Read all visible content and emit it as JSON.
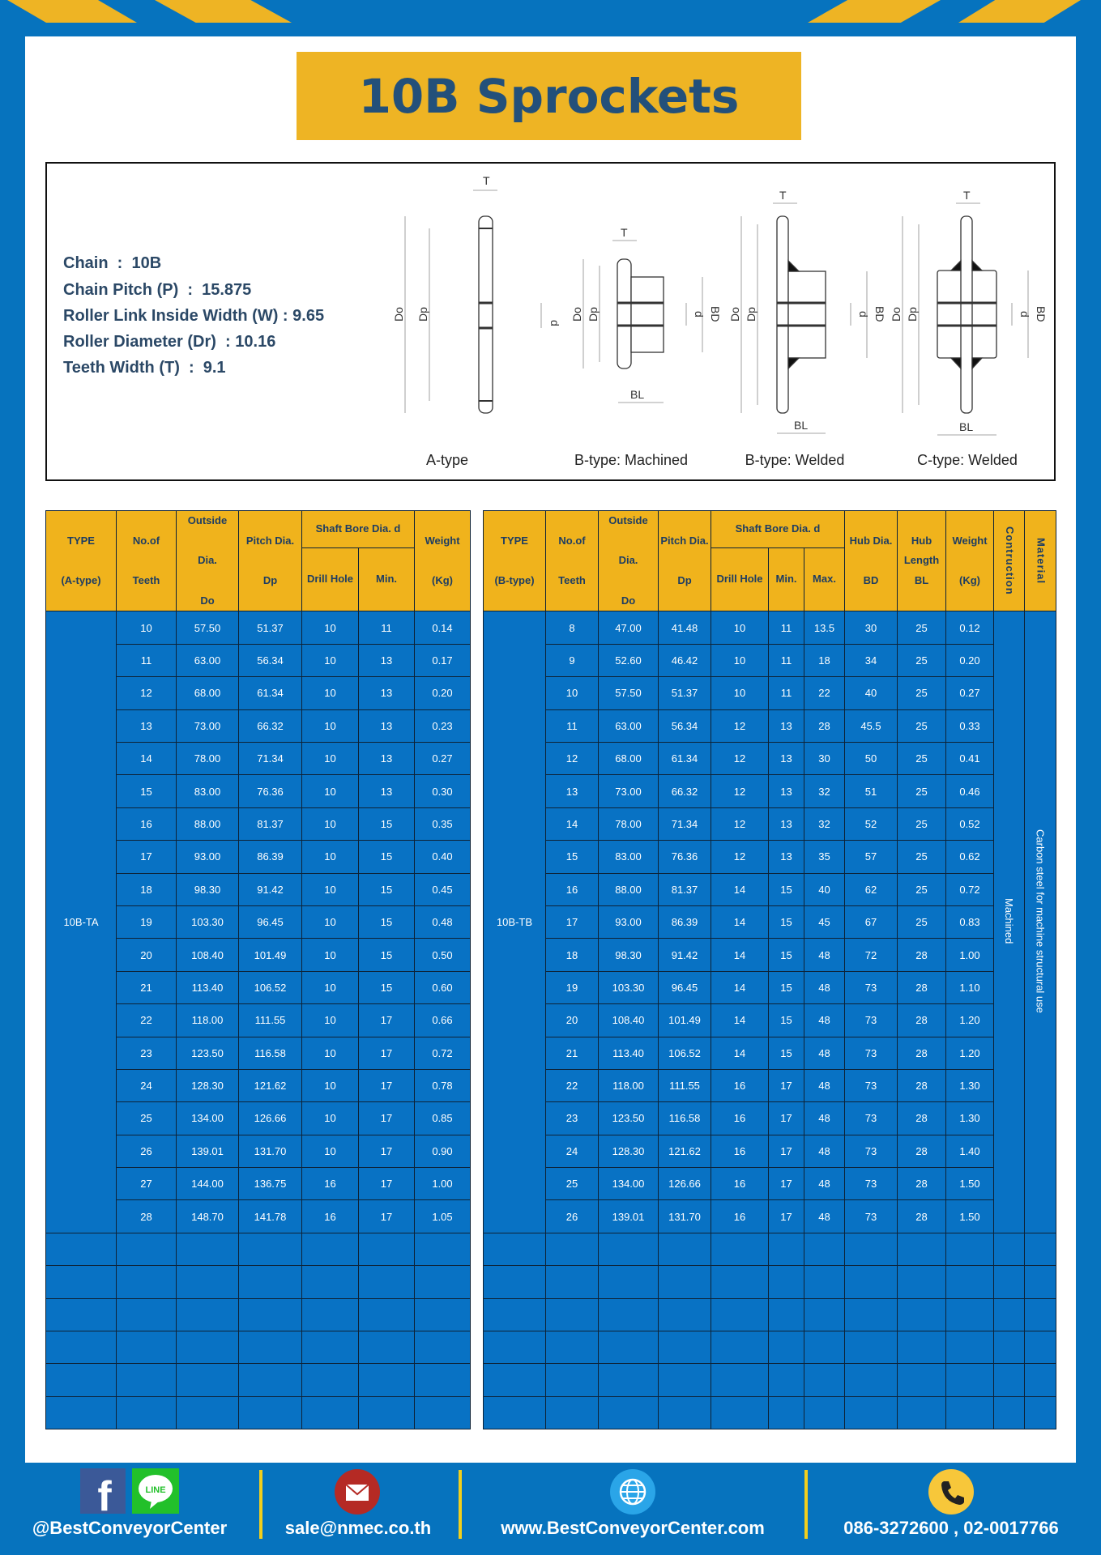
{
  "title": "10B Sprockets",
  "specs": [
    "Chain  :  10B",
    "Chain Pitch (P)  :  15.875",
    "Roller Link Inside Width (W) : 9.65",
    "Roller Diameter (Dr)  : 10.16",
    "Teeth Width (T)  :  9.1"
  ],
  "diagram": {
    "captions": [
      "A-type",
      "B-type: Machined",
      "B-type: Welded",
      "C-type: Welded"
    ],
    "dims": {
      "T": "T",
      "Do": "Do",
      "Dp": "Dp",
      "d": "d",
      "BD": "BD",
      "BL": "BL"
    }
  },
  "table_a": {
    "headers": {
      "type": [
        "TYPE",
        "(A-type)"
      ],
      "teeth": [
        "No.of",
        "Teeth"
      ],
      "outside": [
        "Outside",
        "Dia.",
        "Do"
      ],
      "pitch": [
        "Pitch Dia.",
        "Dp"
      ],
      "shaft": "Shaft Bore Dia. d",
      "drill": "Drill Hole",
      "min": "Min.",
      "weight": [
        "Weight",
        "(Kg)"
      ]
    },
    "type_value": "10B-TA",
    "rows": [
      [
        "10",
        "57.50",
        "51.37",
        "10",
        "11",
        "0.14"
      ],
      [
        "11",
        "63.00",
        "56.34",
        "10",
        "13",
        "0.17"
      ],
      [
        "12",
        "68.00",
        "61.34",
        "10",
        "13",
        "0.20"
      ],
      [
        "13",
        "73.00",
        "66.32",
        "10",
        "13",
        "0.23"
      ],
      [
        "14",
        "78.00",
        "71.34",
        "10",
        "13",
        "0.27"
      ],
      [
        "15",
        "83.00",
        "76.36",
        "10",
        "13",
        "0.30"
      ],
      [
        "16",
        "88.00",
        "81.37",
        "10",
        "15",
        "0.35"
      ],
      [
        "17",
        "93.00",
        "86.39",
        "10",
        "15",
        "0.40"
      ],
      [
        "18",
        "98.30",
        "91.42",
        "10",
        "15",
        "0.45"
      ],
      [
        "19",
        "103.30",
        "96.45",
        "10",
        "15",
        "0.48"
      ],
      [
        "20",
        "108.40",
        "101.49",
        "10",
        "15",
        "0.50"
      ],
      [
        "21",
        "113.40",
        "106.52",
        "10",
        "15",
        "0.60"
      ],
      [
        "22",
        "118.00",
        "111.55",
        "10",
        "17",
        "0.66"
      ],
      [
        "23",
        "123.50",
        "116.58",
        "10",
        "17",
        "0.72"
      ],
      [
        "24",
        "128.30",
        "121.62",
        "10",
        "17",
        "0.78"
      ],
      [
        "25",
        "134.00",
        "126.66",
        "10",
        "17",
        "0.85"
      ],
      [
        "26",
        "139.01",
        "131.70",
        "10",
        "17",
        "0.90"
      ],
      [
        "27",
        "144.00",
        "136.75",
        "16",
        "17",
        "1.00"
      ],
      [
        "28",
        "148.70",
        "141.78",
        "16",
        "17",
        "1.05"
      ]
    ]
  },
  "table_b": {
    "headers": {
      "type": [
        "TYPE",
        "(B-type)"
      ],
      "teeth": [
        "No.of",
        "Teeth"
      ],
      "outside": [
        "Outside",
        "Dia.",
        "Do"
      ],
      "pitch": [
        "Pitch Dia.",
        "Dp"
      ],
      "shaft": "Shaft Bore Dia. d",
      "drill": "Drill Hole",
      "min": "Min.",
      "max": "Max.",
      "hub_dia": [
        "Hub Dia.",
        "BD"
      ],
      "hub_len": [
        "Hub",
        "Length",
        "BL"
      ],
      "weight": [
        "Weight",
        "(Kg)"
      ],
      "construction": "Contruction",
      "material": "Material"
    },
    "type_value": "10B-TB",
    "construction_value": "Machined",
    "material_value": "Carbon steel  for machine structural use",
    "rows": [
      [
        "8",
        "47.00",
        "41.48",
        "10",
        "11",
        "13.5",
        "30",
        "25",
        "0.12"
      ],
      [
        "9",
        "52.60",
        "46.42",
        "10",
        "11",
        "18",
        "34",
        "25",
        "0.20"
      ],
      [
        "10",
        "57.50",
        "51.37",
        "10",
        "11",
        "22",
        "40",
        "25",
        "0.27"
      ],
      [
        "11",
        "63.00",
        "56.34",
        "12",
        "13",
        "28",
        "45.5",
        "25",
        "0.33"
      ],
      [
        "12",
        "68.00",
        "61.34",
        "12",
        "13",
        "30",
        "50",
        "25",
        "0.41"
      ],
      [
        "13",
        "73.00",
        "66.32",
        "12",
        "13",
        "32",
        "51",
        "25",
        "0.46"
      ],
      [
        "14",
        "78.00",
        "71.34",
        "12",
        "13",
        "32",
        "52",
        "25",
        "0.52"
      ],
      [
        "15",
        "83.00",
        "76.36",
        "12",
        "13",
        "35",
        "57",
        "25",
        "0.62"
      ],
      [
        "16",
        "88.00",
        "81.37",
        "14",
        "15",
        "40",
        "62",
        "25",
        "0.72"
      ],
      [
        "17",
        "93.00",
        "86.39",
        "14",
        "15",
        "45",
        "67",
        "25",
        "0.83"
      ],
      [
        "18",
        "98.30",
        "91.42",
        "14",
        "15",
        "48",
        "72",
        "28",
        "1.00"
      ],
      [
        "19",
        "103.30",
        "96.45",
        "14",
        "15",
        "48",
        "73",
        "28",
        "1.10"
      ],
      [
        "20",
        "108.40",
        "101.49",
        "14",
        "15",
        "48",
        "73",
        "28",
        "1.20"
      ],
      [
        "21",
        "113.40",
        "106.52",
        "14",
        "15",
        "48",
        "73",
        "28",
        "1.20"
      ],
      [
        "22",
        "118.00",
        "111.55",
        "16",
        "17",
        "48",
        "73",
        "28",
        "1.30"
      ],
      [
        "23",
        "123.50",
        "116.58",
        "16",
        "17",
        "48",
        "73",
        "28",
        "1.30"
      ],
      [
        "24",
        "128.30",
        "121.62",
        "16",
        "17",
        "48",
        "73",
        "28",
        "1.40"
      ],
      [
        "25",
        "134.00",
        "126.66",
        "16",
        "17",
        "48",
        "73",
        "28",
        "1.50"
      ],
      [
        "26",
        "139.01",
        "131.70",
        "16",
        "17",
        "48",
        "73",
        "28",
        "1.50"
      ]
    ]
  },
  "footer": {
    "social": "@BestConveyorCenter",
    "line_icon_text": "LINE",
    "email": "sale@nmec.co.th",
    "website": "www.BestConveyorCenter.com",
    "phone": "086-3272600 , 02-0017766"
  },
  "colors": {
    "brand_blue": "#0673be",
    "brand_yellow": "#eeb424",
    "title_text": "#23507a"
  }
}
